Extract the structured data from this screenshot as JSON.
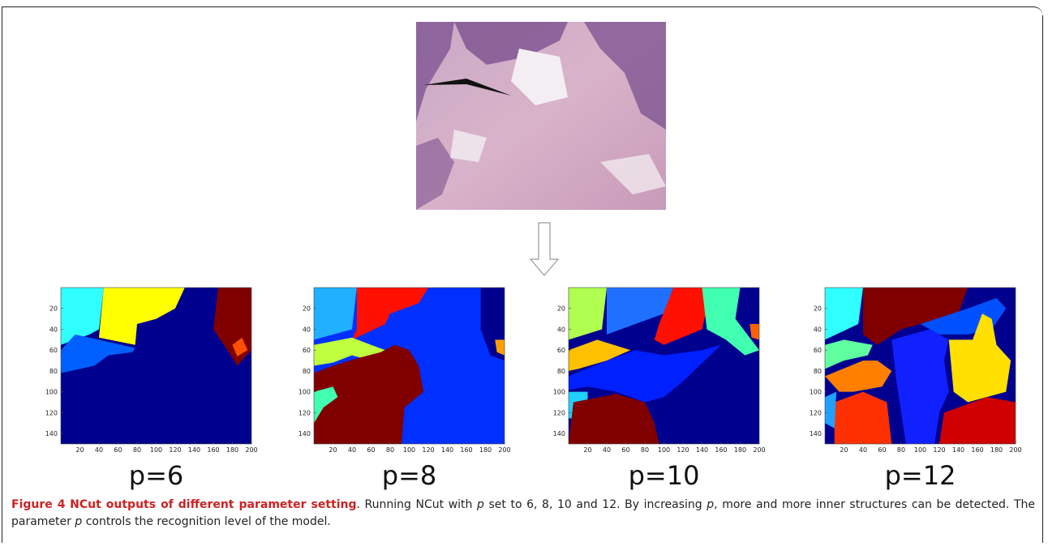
{
  "figure": {
    "panels": [
      {
        "label": "p=6",
        "xlim": [
          0,
          200
        ],
        "ylim": [
          150,
          0
        ],
        "xticks": [
          20,
          40,
          60,
          80,
          100,
          120,
          140,
          160,
          180,
          200
        ],
        "yticks": [
          20,
          40,
          60,
          80,
          100,
          120,
          140
        ]
      },
      {
        "label": "p=8",
        "xlim": [
          0,
          200
        ],
        "ylim": [
          150,
          0
        ],
        "xticks": [
          20,
          40,
          60,
          80,
          100,
          120,
          140,
          160,
          180,
          200
        ],
        "yticks": [
          20,
          40,
          60,
          80,
          100,
          120,
          140
        ]
      },
      {
        "label": "p=10",
        "xlim": [
          0,
          200
        ],
        "ylim": [
          150,
          0
        ],
        "xticks": [
          20,
          40,
          60,
          80,
          100,
          120,
          140,
          160,
          180,
          200
        ],
        "yticks": [
          20,
          40,
          60,
          80,
          100,
          120,
          140
        ]
      },
      {
        "label": "p=12",
        "xlim": [
          0,
          200
        ],
        "ylim": [
          150,
          0
        ],
        "xticks": [
          20,
          40,
          60,
          80,
          100,
          120,
          140,
          160,
          180,
          200
        ],
        "yticks": [
          20,
          40,
          60,
          80,
          100,
          120,
          140
        ]
      }
    ],
    "caption": {
      "label": "Figure 4",
      "title": "NCut outputs of different parameter setting",
      "parts": [
        {
          "text": ". Running NCut with "
        },
        {
          "text": "p",
          "italic": true
        },
        {
          "text": " set to 6, 8, 10 and 12. By increasing "
        },
        {
          "text": "p",
          "italic": true
        },
        {
          "text": ", more and more inner structures can be detected. The parameter "
        },
        {
          "text": "p",
          "italic": true
        },
        {
          "text": " controls the recognition level of the model."
        }
      ]
    }
  }
}
